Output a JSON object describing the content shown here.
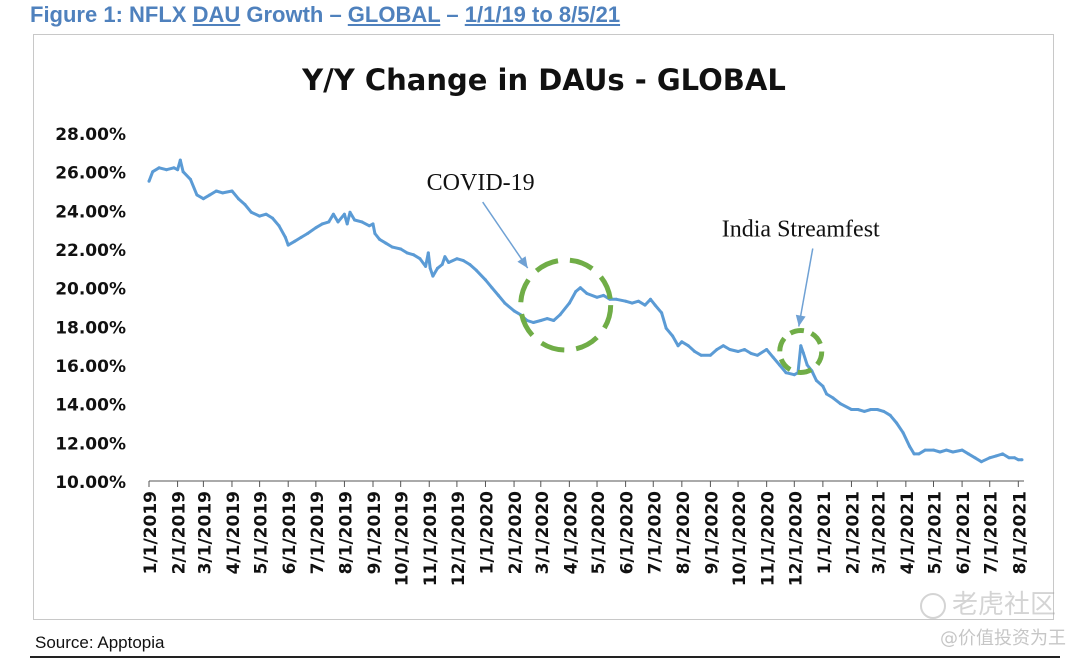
{
  "figure": {
    "prefix": "Figure 1: NFLX ",
    "dau": "DAU",
    "growth": " Growth – ",
    "global": "GLOBAL",
    "dash": " – ",
    "range": "1/1/19 to 8/5/21"
  },
  "source": "Source: Apptopia",
  "watermark": {
    "brand": "老虎社区",
    "handle": "@价值投资为王"
  },
  "chart_data": {
    "type": "line",
    "title": "Y/Y Change in DAUs - GLOBAL",
    "xlabel": "",
    "ylabel": "",
    "ylim": [
      10,
      28
    ],
    "y_ticks": [
      "10.00%",
      "12.00%",
      "14.00%",
      "16.00%",
      "18.00%",
      "20.00%",
      "22.00%",
      "24.00%",
      "26.00%",
      "28.00%"
    ],
    "x_ticks": [
      "1/1/2019",
      "2/1/2019",
      "3/1/2019",
      "4/1/2019",
      "5/1/2019",
      "6/1/2019",
      "7/1/2019",
      "8/1/2019",
      "9/1/2019",
      "10/1/2019",
      "11/1/2019",
      "12/1/2019",
      "1/1/2020",
      "2/1/2020",
      "3/1/2020",
      "4/1/2020",
      "5/1/2020",
      "6/1/2020",
      "7/1/2020",
      "8/1/2020",
      "9/1/2020",
      "10/1/2020",
      "11/1/2020",
      "12/1/2020",
      "1/1/2021",
      "2/1/2021",
      "3/1/2021",
      "4/1/2021",
      "5/1/2021",
      "6/1/2021",
      "7/1/2021",
      "8/1/2021"
    ],
    "line_color": "#5b9bd5",
    "annotation_color": "#70ad47",
    "series": [
      {
        "points": [
          [
            "2019-01-01",
            25.5
          ],
          [
            "2019-01-05",
            26.0
          ],
          [
            "2019-01-12",
            26.2
          ],
          [
            "2019-01-20",
            26.1
          ],
          [
            "2019-01-28",
            26.2
          ],
          [
            "2019-02-01",
            26.1
          ],
          [
            "2019-02-04",
            26.6
          ],
          [
            "2019-02-07",
            26.0
          ],
          [
            "2019-02-15",
            25.6
          ],
          [
            "2019-02-22",
            24.8
          ],
          [
            "2019-03-01",
            24.6
          ],
          [
            "2019-03-08",
            24.8
          ],
          [
            "2019-03-15",
            25.0
          ],
          [
            "2019-03-22",
            24.9
          ],
          [
            "2019-04-01",
            25.0
          ],
          [
            "2019-04-08",
            24.6
          ],
          [
            "2019-04-15",
            24.3
          ],
          [
            "2019-04-22",
            23.9
          ],
          [
            "2019-05-01",
            23.7
          ],
          [
            "2019-05-08",
            23.8
          ],
          [
            "2019-05-15",
            23.6
          ],
          [
            "2019-05-22",
            23.2
          ],
          [
            "2019-05-29",
            22.6
          ],
          [
            "2019-06-01",
            22.2
          ],
          [
            "2019-06-08",
            22.4
          ],
          [
            "2019-06-15",
            22.6
          ],
          [
            "2019-06-22",
            22.8
          ],
          [
            "2019-07-01",
            23.1
          ],
          [
            "2019-07-08",
            23.3
          ],
          [
            "2019-07-15",
            23.4
          ],
          [
            "2019-07-20",
            23.8
          ],
          [
            "2019-07-25",
            23.4
          ],
          [
            "2019-08-01",
            23.8
          ],
          [
            "2019-08-04",
            23.3
          ],
          [
            "2019-08-07",
            23.9
          ],
          [
            "2019-08-12",
            23.5
          ],
          [
            "2019-08-20",
            23.4
          ],
          [
            "2019-08-28",
            23.2
          ],
          [
            "2019-09-01",
            23.3
          ],
          [
            "2019-09-03",
            22.8
          ],
          [
            "2019-09-08",
            22.5
          ],
          [
            "2019-09-15",
            22.3
          ],
          [
            "2019-09-22",
            22.1
          ],
          [
            "2019-10-01",
            22.0
          ],
          [
            "2019-10-08",
            21.8
          ],
          [
            "2019-10-15",
            21.7
          ],
          [
            "2019-10-22",
            21.5
          ],
          [
            "2019-10-28",
            21.1
          ],
          [
            "2019-10-31",
            21.8
          ],
          [
            "2019-11-02",
            21.0
          ],
          [
            "2019-11-05",
            20.6
          ],
          [
            "2019-11-10",
            21.0
          ],
          [
            "2019-11-15",
            21.2
          ],
          [
            "2019-11-18",
            21.6
          ],
          [
            "2019-11-22",
            21.3
          ],
          [
            "2019-12-01",
            21.5
          ],
          [
            "2019-12-08",
            21.4
          ],
          [
            "2019-12-15",
            21.2
          ],
          [
            "2019-12-22",
            20.9
          ],
          [
            "2020-01-01",
            20.4
          ],
          [
            "2020-01-08",
            20.0
          ],
          [
            "2020-01-15",
            19.6
          ],
          [
            "2020-01-22",
            19.2
          ],
          [
            "2020-02-01",
            18.8
          ],
          [
            "2020-02-08",
            18.6
          ],
          [
            "2020-02-15",
            18.3
          ],
          [
            "2020-02-22",
            18.2
          ],
          [
            "2020-03-01",
            18.3
          ],
          [
            "2020-03-08",
            18.4
          ],
          [
            "2020-03-15",
            18.3
          ],
          [
            "2020-03-22",
            18.6
          ],
          [
            "2020-04-01",
            19.2
          ],
          [
            "2020-04-08",
            19.8
          ],
          [
            "2020-04-13",
            20.0
          ],
          [
            "2020-04-20",
            19.7
          ],
          [
            "2020-05-01",
            19.5
          ],
          [
            "2020-05-08",
            19.6
          ],
          [
            "2020-05-15",
            19.4
          ],
          [
            "2020-05-22",
            19.4
          ],
          [
            "2020-06-01",
            19.3
          ],
          [
            "2020-06-08",
            19.2
          ],
          [
            "2020-06-15",
            19.3
          ],
          [
            "2020-06-22",
            19.1
          ],
          [
            "2020-06-28",
            19.4
          ],
          [
            "2020-07-03",
            19.1
          ],
          [
            "2020-07-10",
            18.7
          ],
          [
            "2020-07-15",
            17.9
          ],
          [
            "2020-07-22",
            17.5
          ],
          [
            "2020-07-28",
            17.0
          ],
          [
            "2020-08-01",
            17.2
          ],
          [
            "2020-08-08",
            17.0
          ],
          [
            "2020-08-15",
            16.7
          ],
          [
            "2020-08-22",
            16.5
          ],
          [
            "2020-09-01",
            16.5
          ],
          [
            "2020-09-08",
            16.8
          ],
          [
            "2020-09-15",
            17.0
          ],
          [
            "2020-09-22",
            16.8
          ],
          [
            "2020-10-01",
            16.7
          ],
          [
            "2020-10-08",
            16.8
          ],
          [
            "2020-10-15",
            16.6
          ],
          [
            "2020-10-22",
            16.5
          ],
          [
            "2020-11-01",
            16.8
          ],
          [
            "2020-11-08",
            16.4
          ],
          [
            "2020-11-15",
            16.0
          ],
          [
            "2020-11-22",
            15.6
          ],
          [
            "2020-12-01",
            15.5
          ],
          [
            "2020-12-05",
            15.6
          ],
          [
            "2020-12-08",
            17.0
          ],
          [
            "2020-12-11",
            16.6
          ],
          [
            "2020-12-15",
            16.0
          ],
          [
            "2020-12-20",
            15.7
          ],
          [
            "2020-12-25",
            15.2
          ],
          [
            "2021-01-01",
            14.9
          ],
          [
            "2021-01-05",
            14.5
          ],
          [
            "2021-01-12",
            14.3
          ],
          [
            "2021-01-20",
            14.0
          ],
          [
            "2021-02-01",
            13.7
          ],
          [
            "2021-02-08",
            13.7
          ],
          [
            "2021-02-15",
            13.6
          ],
          [
            "2021-02-22",
            13.7
          ],
          [
            "2021-03-01",
            13.7
          ],
          [
            "2021-03-08",
            13.6
          ],
          [
            "2021-03-15",
            13.4
          ],
          [
            "2021-03-22",
            13.0
          ],
          [
            "2021-03-29",
            12.5
          ],
          [
            "2021-04-05",
            11.8
          ],
          [
            "2021-04-10",
            11.4
          ],
          [
            "2021-04-15",
            11.4
          ],
          [
            "2021-04-22",
            11.6
          ],
          [
            "2021-05-01",
            11.6
          ],
          [
            "2021-05-08",
            11.5
          ],
          [
            "2021-05-15",
            11.6
          ],
          [
            "2021-05-22",
            11.5
          ],
          [
            "2021-06-01",
            11.6
          ],
          [
            "2021-06-08",
            11.4
          ],
          [
            "2021-06-15",
            11.2
          ],
          [
            "2021-06-22",
            11.0
          ],
          [
            "2021-07-01",
            11.2
          ],
          [
            "2021-07-08",
            11.3
          ],
          [
            "2021-07-15",
            11.4
          ],
          [
            "2021-07-22",
            11.2
          ],
          [
            "2021-07-28",
            11.2
          ],
          [
            "2021-08-01",
            11.1
          ],
          [
            "2021-08-05",
            11.1
          ]
        ]
      }
    ],
    "annotations": [
      {
        "label": "COVID-19",
        "date": "2020-03-28",
        "value": 19.1
      },
      {
        "label": "India Streamfest",
        "date": "2020-12-08",
        "value": 16.7
      }
    ]
  }
}
